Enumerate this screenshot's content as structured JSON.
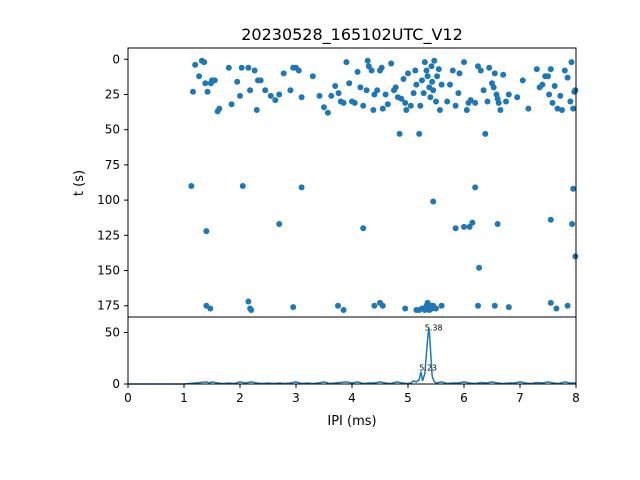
{
  "chart_data": [
    {
      "type": "scatter",
      "title": "20230528_165102UTC_V12",
      "xlabel": "",
      "ylabel": "t (s)",
      "xlim": [
        0,
        8
      ],
      "ylim": [
        183,
        -8
      ],
      "y_inverted": true,
      "yticks": [
        0,
        25,
        50,
        75,
        100,
        125,
        150,
        175
      ],
      "grid": false,
      "color": "#1f77b4",
      "points": [
        [
          1.16,
          23
        ],
        [
          1.2,
          4
        ],
        [
          1.27,
          12
        ],
        [
          1.32,
          1
        ],
        [
          1.36,
          2
        ],
        [
          1.38,
          17
        ],
        [
          1.42,
          23
        ],
        [
          1.48,
          17
        ],
        [
          1.5,
          15
        ],
        [
          1.55,
          15
        ],
        [
          1.6,
          37
        ],
        [
          1.63,
          35
        ],
        [
          1.8,
          6
        ],
        [
          1.85,
          32
        ],
        [
          1.95,
          16
        ],
        [
          2.0,
          26
        ],
        [
          2.03,
          6
        ],
        [
          2.15,
          6
        ],
        [
          2.18,
          22
        ],
        [
          2.26,
          8
        ],
        [
          2.3,
          36
        ],
        [
          2.32,
          15
        ],
        [
          2.37,
          15
        ],
        [
          2.45,
          22
        ],
        [
          2.55,
          26
        ],
        [
          2.63,
          29
        ],
        [
          2.7,
          25
        ],
        [
          2.78,
          10
        ],
        [
          2.9,
          22
        ],
        [
          2.95,
          6
        ],
        [
          3.0,
          6
        ],
        [
          3.05,
          8
        ],
        [
          3.1,
          27
        ],
        [
          3.3,
          12
        ],
        [
          3.42,
          26
        ],
        [
          3.5,
          34
        ],
        [
          3.57,
          38
        ],
        [
          3.63,
          26
        ],
        [
          3.7,
          19
        ],
        [
          3.76,
          24
        ],
        [
          3.8,
          30
        ],
        [
          3.85,
          31
        ],
        [
          3.9,
          2
        ],
        [
          3.95,
          17
        ],
        [
          4.0,
          30
        ],
        [
          4.05,
          31
        ],
        [
          4.1,
          9
        ],
        [
          4.15,
          20
        ],
        [
          4.2,
          33
        ],
        [
          4.26,
          22
        ],
        [
          4.28,
          1
        ],
        [
          4.3,
          5
        ],
        [
          4.35,
          8
        ],
        [
          4.38,
          36
        ],
        [
          4.4,
          25
        ],
        [
          4.45,
          22
        ],
        [
          4.5,
          8
        ],
        [
          4.53,
          6
        ],
        [
          4.55,
          35
        ],
        [
          4.6,
          25
        ],
        [
          4.64,
          32
        ],
        [
          4.7,
          3
        ],
        [
          4.75,
          22
        ],
        [
          4.78,
          20
        ],
        [
          4.82,
          27
        ],
        [
          4.85,
          53
        ],
        [
          4.88,
          28
        ],
        [
          4.92,
          14
        ],
        [
          4.95,
          31
        ],
        [
          4.97,
          36
        ],
        [
          5.0,
          10
        ],
        [
          5.05,
          33
        ],
        [
          5.1,
          24
        ],
        [
          5.13,
          8
        ],
        [
          5.15,
          18
        ],
        [
          5.2,
          53
        ],
        [
          5.22,
          33
        ],
        [
          5.25,
          15
        ],
        [
          5.28,
          24
        ],
        [
          5.3,
          2
        ],
        [
          5.33,
          8
        ],
        [
          5.35,
          12
        ],
        [
          5.38,
          20
        ],
        [
          5.4,
          27
        ],
        [
          5.42,
          5
        ],
        [
          5.43,
          16
        ],
        [
          5.45,
          22
        ],
        [
          5.47,
          1
        ],
        [
          5.5,
          30
        ],
        [
          5.52,
          12
        ],
        [
          5.55,
          7
        ],
        [
          5.57,
          36
        ],
        [
          5.6,
          18
        ],
        [
          5.7,
          30
        ],
        [
          5.75,
          18
        ],
        [
          5.8,
          8
        ],
        [
          5.85,
          33
        ],
        [
          5.9,
          24
        ],
        [
          5.92,
          10
        ],
        [
          6.0,
          2
        ],
        [
          6.05,
          36
        ],
        [
          6.08,
          31
        ],
        [
          6.12,
          29
        ],
        [
          6.2,
          31
        ],
        [
          6.25,
          5
        ],
        [
          6.3,
          8
        ],
        [
          6.35,
          22
        ],
        [
          6.38,
          53
        ],
        [
          6.42,
          30
        ],
        [
          6.45,
          6
        ],
        [
          6.5,
          17
        ],
        [
          6.53,
          20
        ],
        [
          6.55,
          10
        ],
        [
          6.58,
          25
        ],
        [
          6.6,
          28
        ],
        [
          6.62,
          31
        ],
        [
          6.65,
          36
        ],
        [
          6.7,
          11
        ],
        [
          6.75,
          30
        ],
        [
          6.8,
          25
        ],
        [
          6.95,
          27
        ],
        [
          7.05,
          15
        ],
        [
          7.15,
          35
        ],
        [
          7.3,
          7
        ],
        [
          7.35,
          20
        ],
        [
          7.4,
          18
        ],
        [
          7.45,
          12
        ],
        [
          7.5,
          12
        ],
        [
          7.52,
          25
        ],
        [
          7.55,
          7
        ],
        [
          7.58,
          31
        ],
        [
          7.62,
          19
        ],
        [
          7.67,
          35
        ],
        [
          7.72,
          26
        ],
        [
          7.75,
          36
        ],
        [
          7.8,
          8
        ],
        [
          7.85,
          13
        ],
        [
          7.9,
          30
        ],
        [
          7.92,
          2
        ],
        [
          7.95,
          35
        ],
        [
          7.97,
          23
        ],
        [
          7.99,
          22
        ],
        [
          1.13,
          90
        ],
        [
          2.05,
          90
        ],
        [
          3.1,
          91
        ],
        [
          6.2,
          91
        ],
        [
          7.95,
          92
        ],
        [
          5.45,
          101
        ],
        [
          2.7,
          117
        ],
        [
          6.6,
          117
        ],
        [
          7.55,
          114
        ],
        [
          7.93,
          117
        ],
        [
          1.4,
          122
        ],
        [
          4.2,
          120
        ],
        [
          5.85,
          120
        ],
        [
          6.0,
          119
        ],
        [
          6.1,
          119
        ],
        [
          6.15,
          116
        ],
        [
          6.27,
          148
        ],
        [
          7.99,
          140
        ],
        [
          1.4,
          175
        ],
        [
          1.47,
          177
        ],
        [
          2.15,
          172
        ],
        [
          2.18,
          177
        ],
        [
          2.2,
          178
        ],
        [
          2.95,
          176
        ],
        [
          3.75,
          175
        ],
        [
          3.85,
          178
        ],
        [
          4.4,
          175
        ],
        [
          4.5,
          173
        ],
        [
          4.55,
          175
        ],
        [
          4.95,
          177
        ],
        [
          5.15,
          178
        ],
        [
          5.2,
          178
        ],
        [
          5.25,
          177
        ],
        [
          5.3,
          178
        ],
        [
          5.33,
          175
        ],
        [
          5.35,
          173
        ],
        [
          5.38,
          178
        ],
        [
          5.4,
          175
        ],
        [
          5.43,
          177
        ],
        [
          5.45,
          175
        ],
        [
          5.5,
          177
        ],
        [
          5.6,
          175
        ],
        [
          6.25,
          175
        ],
        [
          6.55,
          175
        ],
        [
          6.8,
          176
        ],
        [
          7.55,
          173
        ],
        [
          7.65,
          177
        ],
        [
          7.85,
          175
        ]
      ]
    },
    {
      "type": "line",
      "xlabel": "IPI (ms)",
      "ylabel": "",
      "xlim": [
        0,
        8
      ],
      "ylim": [
        0,
        65
      ],
      "xticks": [
        0,
        1,
        2,
        3,
        4,
        5,
        6,
        7,
        8
      ],
      "yticks": [
        0,
        50
      ],
      "grid": false,
      "color": "#1f77b4",
      "annotations": [
        {
          "x": 5.3,
          "y": 52,
          "text": "5.38"
        },
        {
          "x": 5.2,
          "y": 13,
          "text": "5.23"
        }
      ],
      "x": [
        0,
        0.8,
        1.0,
        1.1,
        1.2,
        1.3,
        1.4,
        1.45,
        1.5,
        1.6,
        1.7,
        1.8,
        1.9,
        2.0,
        2.1,
        2.2,
        2.3,
        2.4,
        2.5,
        2.6,
        2.7,
        2.8,
        2.9,
        3.0,
        3.1,
        3.2,
        3.3,
        3.4,
        3.5,
        3.6,
        3.7,
        3.8,
        3.9,
        4.0,
        4.1,
        4.2,
        4.3,
        4.4,
        4.5,
        4.6,
        4.7,
        4.8,
        4.9,
        5.0,
        5.05,
        5.1,
        5.15,
        5.2,
        5.23,
        5.26,
        5.3,
        5.33,
        5.36,
        5.38,
        5.4,
        5.43,
        5.46,
        5.5,
        5.6,
        5.7,
        5.8,
        5.9,
        6.0,
        6.1,
        6.2,
        6.3,
        6.4,
        6.5,
        6.6,
        6.7,
        6.8,
        6.9,
        7.0,
        7.1,
        7.2,
        7.3,
        7.4,
        7.5,
        7.6,
        7.7,
        7.8,
        7.9,
        8.0
      ],
      "y": [
        0,
        0,
        0,
        0.5,
        1,
        1.5,
        2,
        1,
        2,
        1,
        0.5,
        1,
        0.5,
        2,
        1,
        2,
        1,
        0.5,
        1,
        0.5,
        1,
        0.5,
        1,
        2,
        0.5,
        1,
        0.5,
        1,
        2,
        0.5,
        1,
        1.5,
        2,
        1,
        2,
        0.5,
        1,
        1,
        2,
        1,
        0.5,
        2,
        1,
        0.5,
        1,
        3,
        2,
        4,
        12,
        3,
        10,
        30,
        50,
        52,
        35,
        8,
        3,
        1,
        2,
        0.5,
        1,
        1,
        2,
        1,
        0.5,
        1.5,
        1,
        2,
        1,
        0.5,
        1,
        1,
        2,
        1,
        0.5,
        1.5,
        1,
        2,
        1,
        0.5,
        2,
        1,
        1
      ]
    }
  ]
}
